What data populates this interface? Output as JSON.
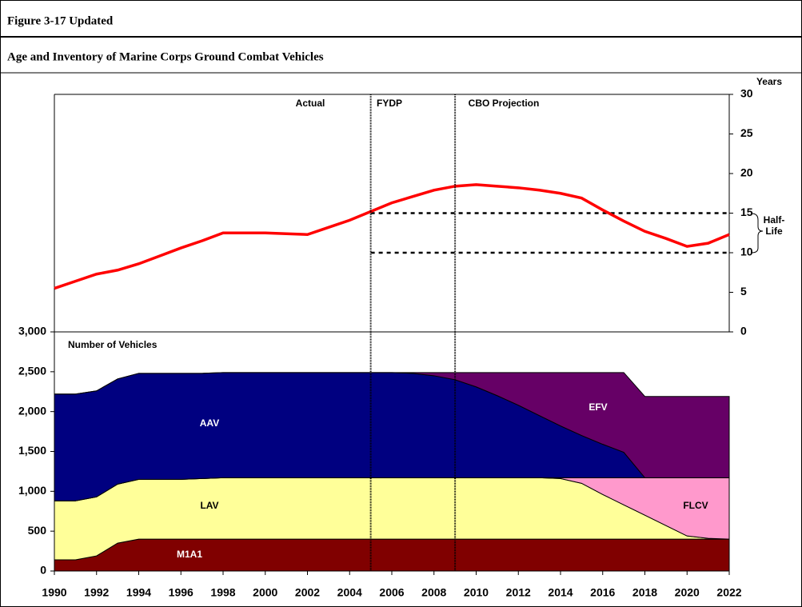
{
  "header": {
    "figure": "Figure 3-17 Updated",
    "title": "Age and Inventory of Marine Corps Ground Combat Vehicles"
  },
  "chart_data": [
    {
      "type": "line",
      "y_label": "Years",
      "y_axis_side": "right",
      "annotations": [
        "Actual",
        "FYDP",
        "CBO Projection",
        "Half-Life"
      ],
      "period_boundaries": [
        2005,
        2009
      ],
      "half_life": [
        10,
        15
      ],
      "x": [
        1990,
        1991,
        1992,
        1993,
        1994,
        1995,
        1996,
        1997,
        1998,
        1999,
        2000,
        2001,
        2002,
        2003,
        2004,
        2005,
        2006,
        2007,
        2008,
        2009,
        2010,
        2011,
        2012,
        2013,
        2014,
        2015,
        2016,
        2017,
        2018,
        2019,
        2020,
        2021,
        2022
      ],
      "xlim": [
        1990,
        2022
      ],
      "ylim": [
        0,
        30
      ],
      "yticks": [
        0,
        5,
        10,
        15,
        20,
        25,
        30
      ],
      "series": [
        {
          "name": "Age",
          "color": "#ff0000",
          "values": [
            5.5,
            6.4,
            7.3,
            7.8,
            8.6,
            9.6,
            10.6,
            11.5,
            12.5,
            12.5,
            12.5,
            12.4,
            12.3,
            13.2,
            14.1,
            15.2,
            16.3,
            17.1,
            17.9,
            18.4,
            18.6,
            18.4,
            18.2,
            17.9,
            17.5,
            16.9,
            15.4,
            14.0,
            12.7,
            11.8,
            10.8,
            11.2,
            12.3
          ]
        }
      ]
    },
    {
      "type": "stacked_area",
      "y_label": "Number of Vehicles",
      "x": [
        1990,
        1991,
        1992,
        1993,
        1994,
        1995,
        1996,
        1997,
        1998,
        1999,
        2000,
        2001,
        2002,
        2003,
        2004,
        2005,
        2006,
        2007,
        2008,
        2009,
        2010,
        2011,
        2012,
        2013,
        2014,
        2015,
        2016,
        2017,
        2018,
        2019,
        2020,
        2021,
        2022
      ],
      "xlim": [
        1990,
        2022
      ],
      "xticks": [
        1990,
        1992,
        1994,
        1996,
        1998,
        2000,
        2002,
        2004,
        2006,
        2008,
        2010,
        2012,
        2014,
        2016,
        2018,
        2020,
        2022
      ],
      "ylim": [
        0,
        3000
      ],
      "yticks": [
        0,
        500,
        {
          "value": 1000,
          "label": "1,000"
        },
        {
          "value": 1500,
          "label": "1,500"
        },
        {
          "value": 2000,
          "label": "2,000"
        },
        {
          "value": 2500,
          "label": "2,500"
        },
        {
          "value": 3000,
          "label": "3,000"
        }
      ],
      "series": [
        {
          "name": "M1A1",
          "color": "#800000",
          "values": [
            140,
            140,
            190,
            350,
            400,
            400,
            400,
            400,
            400,
            400,
            400,
            400,
            400,
            400,
            400,
            400,
            400,
            400,
            400,
            400,
            400,
            400,
            400,
            400,
            400,
            400,
            400,
            400,
            400,
            400,
            400,
            400,
            400
          ]
        },
        {
          "name": "LAV",
          "color": "#ffff99",
          "values": [
            740,
            740,
            740,
            740,
            750,
            750,
            750,
            760,
            770,
            770,
            770,
            770,
            770,
            770,
            770,
            770,
            770,
            770,
            770,
            770,
            770,
            770,
            770,
            770,
            760,
            700,
            560,
            430,
            300,
            170,
            40,
            10,
            0
          ]
        },
        {
          "name": "FLCV",
          "color": "#ff99cc",
          "values": [
            0,
            0,
            0,
            0,
            0,
            0,
            0,
            0,
            0,
            0,
            0,
            0,
            0,
            0,
            0,
            0,
            0,
            0,
            0,
            0,
            0,
            0,
            0,
            0,
            10,
            70,
            210,
            340,
            470,
            600,
            730,
            760,
            770
          ]
        },
        {
          "name": "AAV",
          "color": "#000080",
          "values": [
            1340,
            1340,
            1330,
            1320,
            1330,
            1330,
            1330,
            1320,
            1320,
            1320,
            1320,
            1320,
            1320,
            1320,
            1320,
            1320,
            1320,
            1310,
            1280,
            1230,
            1140,
            1030,
            910,
            780,
            650,
            530,
            420,
            320,
            0,
            0,
            0,
            0,
            0
          ]
        },
        {
          "name": "EFV",
          "color": "#660066",
          "values": [
            0,
            0,
            0,
            0,
            0,
            0,
            0,
            0,
            0,
            0,
            0,
            0,
            0,
            0,
            0,
            0,
            0,
            10,
            40,
            90,
            180,
            290,
            410,
            540,
            670,
            790,
            900,
            1000,
            1020,
            1020,
            1020,
            1020,
            1020
          ]
        }
      ]
    }
  ]
}
